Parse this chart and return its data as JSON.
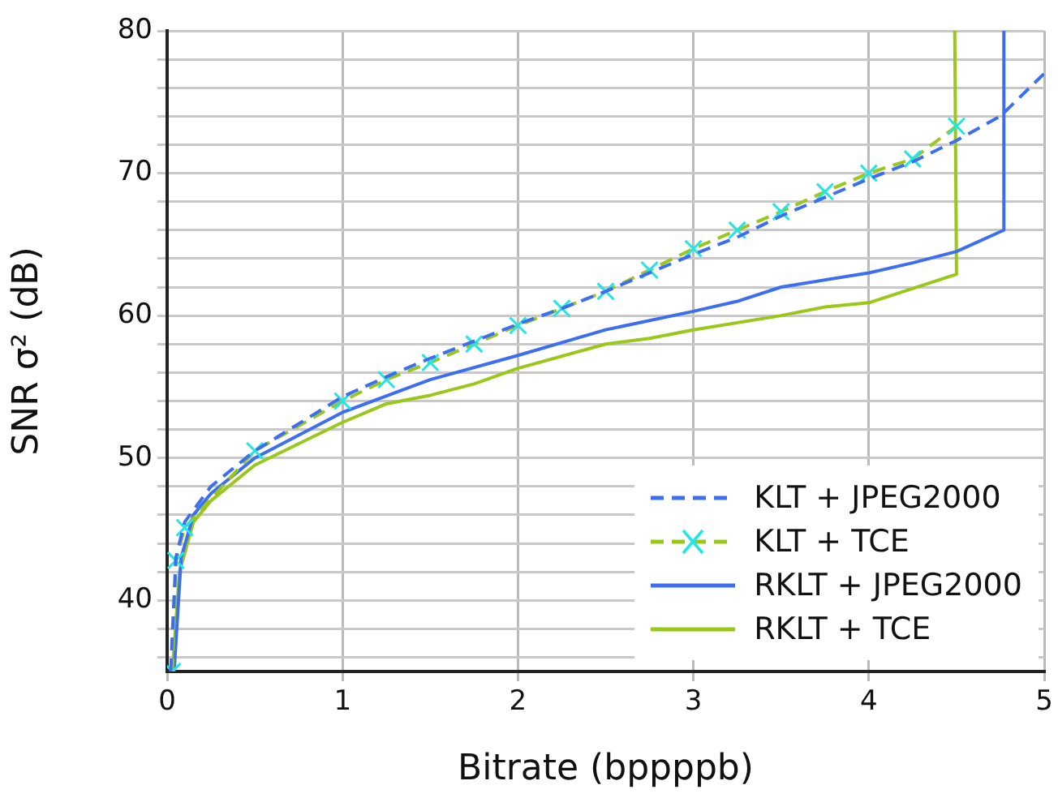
{
  "chart_data": {
    "type": "line",
    "xlabel": "Bitrate (bppppb)",
    "ylabel": "SNR σ² (dB)",
    "xlim": [
      0,
      5
    ],
    "xticks": [
      0,
      1,
      2,
      3,
      4,
      5
    ],
    "ylim": [
      35,
      80
    ],
    "yticks": [
      {
        "value": 36,
        "label": null
      },
      {
        "value": 38,
        "label": null
      },
      40,
      {
        "value": 42,
        "label": null
      },
      {
        "value": 44,
        "label": null
      },
      {
        "value": 46,
        "label": null
      },
      {
        "value": 48,
        "label": null
      },
      50,
      {
        "value": 52,
        "label": null
      },
      {
        "value": 54,
        "label": null
      },
      {
        "value": 56,
        "label": null
      },
      {
        "value": 58,
        "label": null
      },
      60,
      {
        "value": 62,
        "label": null
      },
      {
        "value": 64,
        "label": null
      },
      {
        "value": 66,
        "label": null
      },
      {
        "value": 68,
        "label": null
      },
      70,
      {
        "value": 72,
        "label": null
      },
      {
        "value": 74,
        "label": null
      },
      {
        "value": 76,
        "label": null
      },
      {
        "value": 78,
        "label": null
      },
      80
    ],
    "grid": true,
    "legend": "bottom right",
    "series": [
      {
        "name": "KLT + JPEG2000",
        "color": "#3d6ef0",
        "line_style": "dashed",
        "marker": "none",
        "x": [
          0.02,
          0.05,
          0.1,
          0.25,
          0.5,
          1,
          1.25,
          1.5,
          1.75,
          2,
          2.25,
          2.5,
          2.75,
          3,
          3.25,
          3.5,
          3.75,
          4,
          4.25,
          4.5,
          4.75,
          5
        ],
        "values": [
          35,
          43,
          45.5,
          48,
          50.5,
          54.3,
          55.7,
          57,
          58.2,
          59.4,
          60.5,
          61.7,
          63,
          64.3,
          65.5,
          67,
          68.3,
          69.6,
          70.8,
          72.3,
          74,
          77
        ]
      },
      {
        "name": "KLT + TCE",
        "color": "#99c71a",
        "line_style": "dashed",
        "marker": "cross",
        "x": [
          0.03,
          0.05,
          0.1,
          0.5,
          1,
          1.25,
          1.5,
          1.75,
          2,
          2.25,
          2.5,
          2.75,
          3,
          3.25,
          3.5,
          3.75,
          4,
          4.25,
          4.5
        ],
        "values": [
          35,
          42.8,
          45.1,
          50.5,
          54,
          55.5,
          56.7,
          58,
          59.3,
          60.5,
          61.7,
          63.2,
          64.7,
          66,
          67.3,
          68.7,
          70,
          71,
          73.3
        ]
      },
      {
        "name": "RKLT + JPEG2000",
        "color": "#3d6ef0",
        "line_style": "solid",
        "marker": "none",
        "x": [
          0.04,
          0.08,
          0.15,
          0.25,
          0.5,
          1,
          1.5,
          2,
          2.5,
          3,
          3.25,
          3.5,
          4,
          4.25,
          4.5,
          4.77,
          4.77
        ],
        "values": [
          35,
          43,
          46,
          47.5,
          50,
          53.2,
          55.5,
          57.2,
          59,
          60.3,
          61,
          62,
          63,
          63.7,
          64.5,
          66,
          80
        ]
      },
      {
        "name": "RKLT + TCE",
        "color": "#99c71a",
        "line_style": "solid",
        "marker": "none",
        "x": [
          0.03,
          0.07,
          0.15,
          0.25,
          0.5,
          1,
          1.25,
          1.5,
          1.75,
          2,
          2.5,
          2.75,
          3,
          3.5,
          3.75,
          4,
          4.5,
          4.49
        ],
        "values": [
          35,
          42,
          45.5,
          47,
          49.5,
          52.5,
          53.8,
          54.4,
          55.2,
          56.3,
          58,
          58.4,
          59,
          60,
          60.6,
          60.9,
          62.9,
          80
        ]
      }
    ]
  }
}
